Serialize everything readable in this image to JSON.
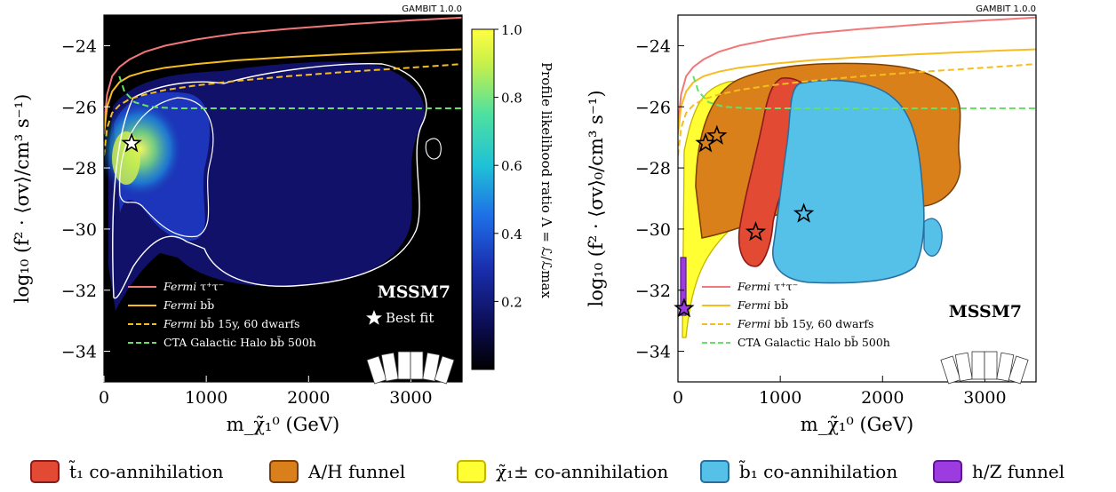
{
  "chart_data": [
    {
      "type": "heatmap",
      "title": "",
      "xlabel": "m_χ̃₁⁰ (GeV)",
      "ylabel": "log₁₀ (f² · ⟨σv⟩/cm³ s⁻¹)",
      "xlim": [
        0,
        3500
      ],
      "ylim": [
        -35,
        -23
      ],
      "xticks": [
        "0",
        "1000",
        "2000",
        "3000"
      ],
      "yticks": [
        "−24",
        "−26",
        "−28",
        "−30",
        "−32",
        "−34"
      ],
      "colorbar": {
        "label": "Profile likelihood ratio Λ = ℒ/ℒmax",
        "ticks": [
          "0.2",
          "0.4",
          "0.6",
          "0.8",
          "1.0"
        ],
        "range": [
          0,
          1
        ]
      },
      "tag": "GAMBIT 1.0.0",
      "model_label": "MSSM7",
      "best_fit": {
        "label": "Best fit",
        "x": 270,
        "y": -27.2
      },
      "limit_curves": [
        {
          "name": "Fermi τ⁺τ⁻",
          "name_italic": "Fermi",
          "name_rest": " τ⁺τ⁻",
          "color": "#f07878",
          "dash": "solid",
          "x": [
            0,
            30,
            80,
            150,
            250,
            400,
            600,
            900,
            1300,
            1800,
            2400,
            3000,
            3500
          ],
          "y": [
            -26.6,
            -25.6,
            -25.0,
            -24.7,
            -24.45,
            -24.2,
            -24.0,
            -23.8,
            -23.6,
            -23.45,
            -23.3,
            -23.17,
            -23.08
          ]
        },
        {
          "name": "Fermi bb̄",
          "name_italic": "Fermi",
          "name_rest": " bb̄",
          "color": "#f5bd1f",
          "dash": "solid",
          "x": [
            0,
            30,
            80,
            150,
            250,
            400,
            600,
            900,
            1300,
            1800,
            2400,
            3000,
            3500
          ],
          "y": [
            -26.9,
            -26.0,
            -25.5,
            -25.2,
            -25.0,
            -24.85,
            -24.72,
            -24.6,
            -24.48,
            -24.37,
            -24.27,
            -24.18,
            -24.12
          ]
        },
        {
          "name": "Fermi bb̄ 15y, 60 dwarfs",
          "name_italic": "Fermi",
          "name_rest": " bb̄ 15y, 60 dwarfs",
          "color": "#f5bd1f",
          "dash": "dashed",
          "x": [
            0,
            30,
            80,
            150,
            250,
            400,
            600,
            900,
            1300,
            1800,
            2400,
            3000,
            3500
          ],
          "y": [
            -27.6,
            -26.7,
            -26.2,
            -25.95,
            -25.75,
            -25.6,
            -25.45,
            -25.3,
            -25.15,
            -25.0,
            -24.85,
            -24.72,
            -24.6
          ]
        },
        {
          "name": "CTA Galactic Halo bb̄ 500h",
          "name_italic": "",
          "name_rest": "CTA Galactic Halo bb̄ 500h",
          "color": "#66e066",
          "dash": "dashed",
          "x": [
            150,
            200,
            300,
            450,
            700,
            1000,
            1500,
            2000,
            2500,
            3000,
            3500
          ],
          "y": [
            -25.0,
            -25.5,
            -25.85,
            -26.0,
            -26.05,
            -26.05,
            -26.05,
            -26.05,
            -26.05,
            -26.05,
            -26.05
          ]
        }
      ],
      "grid": false
    },
    {
      "type": "scatter",
      "title": "",
      "xlabel": "m_χ̃₁⁰ (GeV)",
      "ylabel": "log₁₀ (f² · ⟨σv⟩₀/cm³ s⁻¹)",
      "xlim": [
        0,
        3500
      ],
      "ylim": [
        -35,
        -23
      ],
      "xticks": [
        "0",
        "1000",
        "2000",
        "3000"
      ],
      "yticks": [
        "−24",
        "−26",
        "−28",
        "−30",
        "−32",
        "−34"
      ],
      "tag": "GAMBIT 1.0.0",
      "model_label": "MSSM7",
      "best_fit_stars": [
        {
          "region": "A/H funnel",
          "x": 270,
          "y": -27.2
        },
        {
          "region": "A/H funnel",
          "x": 380,
          "y": -26.95
        },
        {
          "region": "t̃₁ co-annihilation",
          "x": 760,
          "y": -30.1
        },
        {
          "region": "b̃₁ co-annihilation",
          "x": 1230,
          "y": -29.5
        },
        {
          "region": "h/Z funnel",
          "x": 60,
          "y": -32.6
        }
      ],
      "grid": false
    }
  ],
  "region_legend": [
    {
      "label": "t̃₁ co-annihilation",
      "color": "#e24a33",
      "edge": "#8b1a1a"
    },
    {
      "label": "A/H funnel",
      "color": "#d9801a",
      "edge": "#7a3c00"
    },
    {
      "label": "χ̃₁± co-annihilation",
      "color": "#ffff33",
      "edge": "#c8b400"
    },
    {
      "label": "b̃₁ co-annihilation",
      "color": "#55c0e8",
      "edge": "#2a6e9e"
    },
    {
      "label": "h/Z funnel",
      "color": "#9b3be0",
      "edge": "#5a1a8b"
    }
  ],
  "colors": {
    "background_left": "#000000",
    "heatmap_low": "#0b0b4d",
    "heatmap_high": "#ffff40",
    "contour": "#ffffff"
  }
}
